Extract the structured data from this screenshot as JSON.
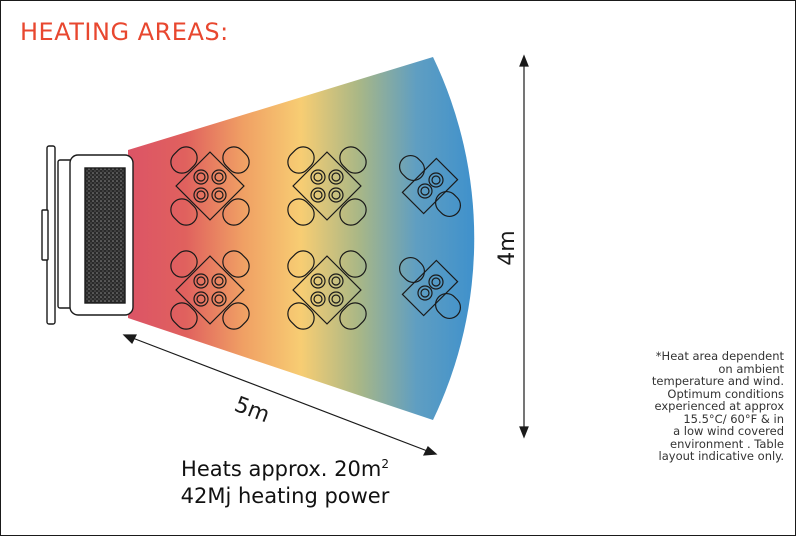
{
  "title": "HEATING AREAS:",
  "depth_label": "5m",
  "width_label": "4m",
  "heats_line_prefix": "Heats approx. 20m",
  "heats_line_sup": "2",
  "power_line": "42Mj heating power",
  "note_lines": "*Heat area dependent\non ambient\ntemperature and wind.\nOptimum conditions\nexperienced at approx\n15.5°C/ 60°F  & in\na low wind covered\nenvironment . Table\nlayout indicative only.",
  "colors": {
    "title": "#e8472f",
    "gradient": [
      "#dc5466",
      "#e0615e",
      "#f0a064",
      "#f7cd73",
      "#a9b786",
      "#5f9ec2",
      "#3f91cc"
    ],
    "lines": "#1a1a1a"
  },
  "tables": {
    "four_seat_count": 4,
    "two_seat_count": 2
  }
}
